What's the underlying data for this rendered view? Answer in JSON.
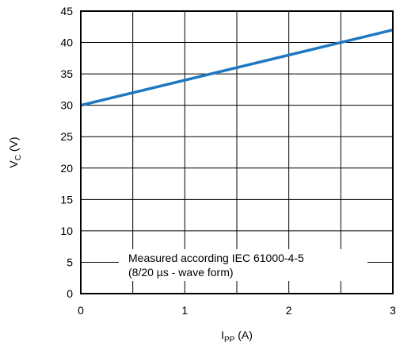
{
  "chart_data": {
    "type": "line",
    "x": [
      0,
      3
    ],
    "series": [
      {
        "x": [
          0,
          3
        ],
        "values": [
          30,
          42
        ],
        "color": "#1f78c1"
      }
    ],
    "xlabel_main": "I",
    "xlabel_sub": "PP",
    "xlabel_unit": " (A)",
    "ylabel_main": "V",
    "ylabel_sub": "C",
    "ylabel_unit": " (V)",
    "xlim": [
      0,
      3
    ],
    "ylim": [
      0,
      45
    ],
    "xticks": [
      0,
      1,
      2,
      3
    ],
    "yticks": [
      0,
      5,
      10,
      15,
      20,
      25,
      30,
      35,
      40,
      45
    ],
    "xtick_labels": [
      "0",
      "1",
      "2",
      "3"
    ],
    "ytick_labels": [
      "0",
      "5",
      "10",
      "15",
      "20",
      "25",
      "30",
      "35",
      "40",
      "45"
    ],
    "annotation_lines": [
      "Measured according IEC 61000-4-5",
      "(8/20 µs - wave form)"
    ],
    "grid": true,
    "legend": "none"
  }
}
